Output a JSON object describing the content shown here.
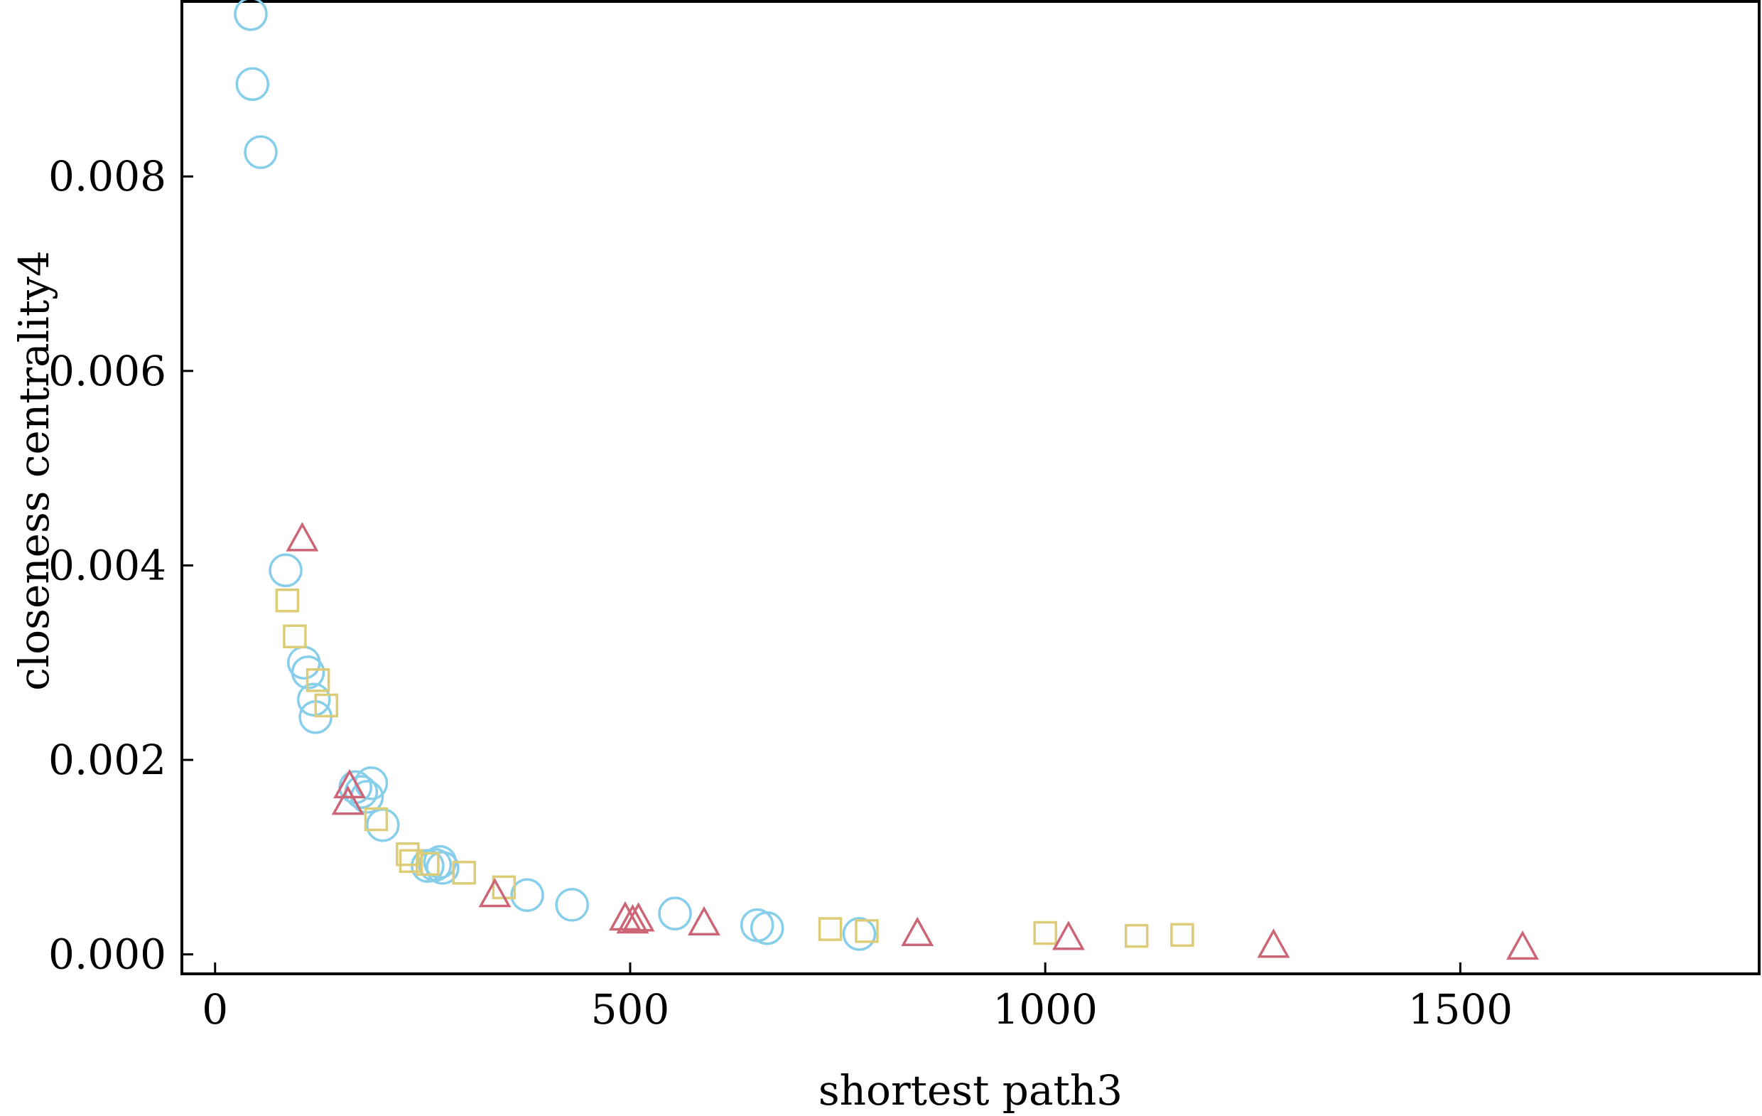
{
  "chart_data": {
    "type": "scatter",
    "xlabel": "shortest path3",
    "ylabel": "closeness centrality4",
    "xlim": [
      -40,
      1860
    ],
    "ylim": [
      -0.0002,
      0.0098
    ],
    "x_ticks": [
      0,
      500,
      1000,
      1500
    ],
    "x_tick_labels": [
      "0",
      "500",
      "1000",
      "1500"
    ],
    "y_ticks": [
      0,
      0.002,
      0.004,
      0.006,
      0.008
    ],
    "y_tick_labels": [
      "0.000",
      "0.002",
      "0.004",
      "0.006",
      "0.008"
    ],
    "grid": false,
    "legend": "none",
    "series": [
      {
        "marker": "circle",
        "color": "#87ceeb",
        "points": [
          [
            43,
            0.00967
          ],
          [
            45,
            0.00895
          ],
          [
            55,
            0.00825
          ],
          [
            85,
            0.00395
          ],
          [
            107,
            0.003
          ],
          [
            112,
            0.0029
          ],
          [
            119,
            0.00262
          ],
          [
            121,
            0.00244
          ],
          [
            169,
            0.00172
          ],
          [
            176,
            0.00167
          ],
          [
            183,
            0.00162
          ],
          [
            188,
            0.00176
          ],
          [
            202,
            0.00133
          ],
          [
            256,
            0.00091
          ],
          [
            265,
            0.00092
          ],
          [
            271,
            0.00095
          ],
          [
            274,
            0.00089
          ],
          [
            376,
            0.00061
          ],
          [
            430,
            0.00051
          ],
          [
            554,
            0.00042
          ],
          [
            653,
            0.0003
          ],
          [
            665,
            0.00027
          ],
          [
            776,
            0.00021
          ]
        ]
      },
      {
        "marker": "square",
        "color": "#ddcc77",
        "points": [
          [
            87,
            0.00364
          ],
          [
            96,
            0.00327
          ],
          [
            124,
            0.00282
          ],
          [
            134,
            0.00256
          ],
          [
            194,
            0.00139
          ],
          [
            232,
            0.00103
          ],
          [
            236,
            0.00096
          ],
          [
            256,
            0.00093
          ],
          [
            300,
            0.00084
          ],
          [
            348,
            0.00069
          ],
          [
            741,
            0.00026
          ],
          [
            785,
            0.00024
          ],
          [
            1000,
            0.00022
          ],
          [
            1110,
            0.00019
          ],
          [
            1165,
            0.0002
          ]
        ]
      },
      {
        "marker": "triangle",
        "color": "#cc6677",
        "points": [
          [
            105,
            0.00426
          ],
          [
            162,
            0.00172
          ],
          [
            160,
            0.00155
          ],
          [
            337,
            0.0006
          ],
          [
            494,
            0.00036
          ],
          [
            503,
            0.00033
          ],
          [
            510,
            0.00035
          ],
          [
            589,
            0.00031
          ],
          [
            846,
            0.0002
          ],
          [
            1028,
            0.00016
          ],
          [
            1275,
            8e-05
          ],
          [
            1575,
            6e-05
          ]
        ]
      }
    ]
  }
}
